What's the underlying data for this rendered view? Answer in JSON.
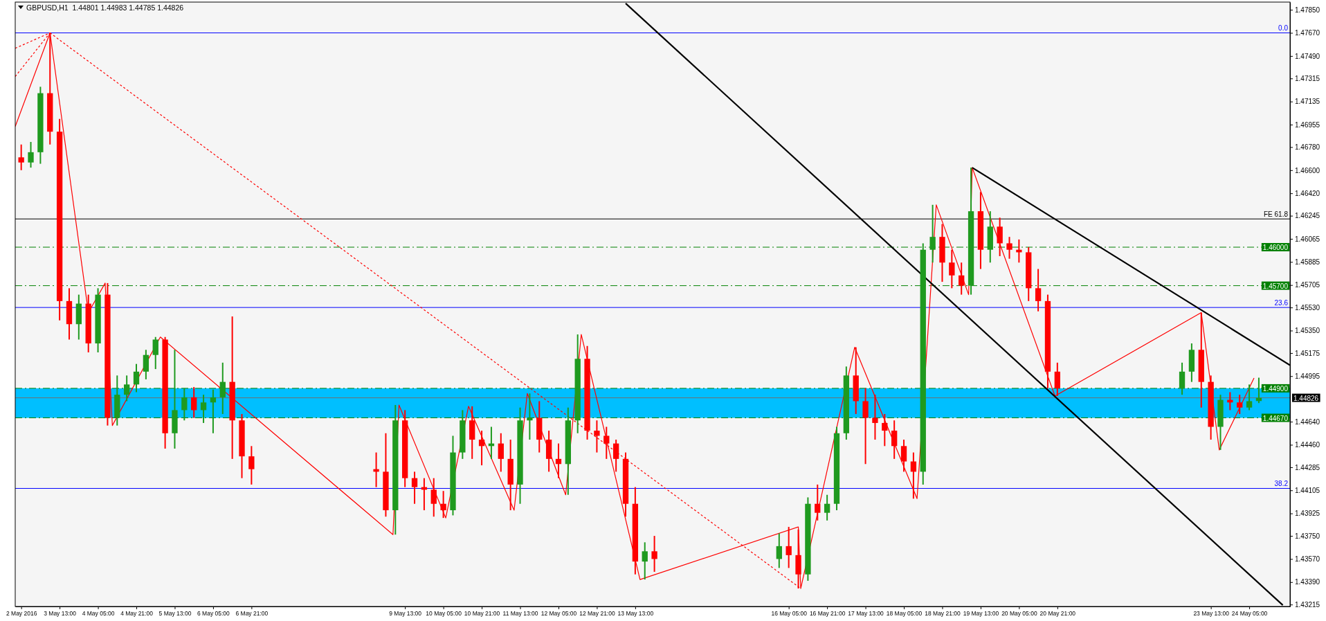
{
  "chart_data": {
    "type": "candlestick",
    "title": "GBPUSD,H1  1.44801 1.44983 1.44785 1.44826",
    "x": [
      "2016-05-02T21:00",
      "2016-05-03T01:00",
      "2016-05-03T05:00",
      "2016-05-03T09:00",
      "2016-05-03T13:00",
      "2016-05-03T17:00",
      "2016-05-03T21:00",
      "2016-05-04T01:00",
      "2016-05-04T05:00",
      "2016-05-04T09:00",
      "2016-05-04T13:00",
      "2016-05-04T17:00",
      "2016-05-04T21:00",
      "2016-05-05T01:00",
      "2016-05-05T05:00",
      "2016-05-05T09:00",
      "2016-05-05T13:00",
      "2016-05-05T17:00",
      "2016-05-05T21:00",
      "2016-05-06T01:00",
      "2016-05-06T05:00",
      "2016-05-06T09:00",
      "2016-05-06T13:00",
      "2016-05-06T17:00",
      "2016-05-06T21:00",
      "2016-05-09T01:00",
      "2016-05-09T05:00",
      "2016-05-09T09:00",
      "2016-05-09T13:00",
      "2016-05-09T17:00",
      "2016-05-09T21:00",
      "2016-05-10T01:00",
      "2016-05-10T05:00",
      "2016-05-10T09:00",
      "2016-05-10T13:00",
      "2016-05-10T17:00",
      "2016-05-10T21:00",
      "2016-05-11T01:00",
      "2016-05-11T05:00",
      "2016-05-11T09:00",
      "2016-05-11T13:00",
      "2016-05-11T17:00",
      "2016-05-11T21:00",
      "2016-05-12T01:00",
      "2016-05-12T05:00",
      "2016-05-12T09:00",
      "2016-05-12T13:00",
      "2016-05-12T17:00",
      "2016-05-12T21:00",
      "2016-05-13T01:00",
      "2016-05-13T05:00",
      "2016-05-13T09:00",
      "2016-05-13T13:00",
      "2016-05-13T17:00",
      "2016-05-13T21:00",
      "2016-05-16T01:00",
      "2016-05-16T05:00",
      "2016-05-16T09:00",
      "2016-05-16T13:00",
      "2016-05-16T17:00",
      "2016-05-16T21:00",
      "2016-05-17T01:00",
      "2016-05-17T05:00",
      "2016-05-17T09:00",
      "2016-05-17T13:00",
      "2016-05-17T17:00",
      "2016-05-17T21:00",
      "2016-05-18T01:00",
      "2016-05-18T05:00",
      "2016-05-18T09:00",
      "2016-05-18T13:00",
      "2016-05-18T17:00",
      "2016-05-18T21:00",
      "2016-05-19T01:00",
      "2016-05-19T05:00",
      "2016-05-19T09:00",
      "2016-05-19T13:00",
      "2016-05-19T17:00",
      "2016-05-19T21:00",
      "2016-05-20T01:00",
      "2016-05-20T05:00",
      "2016-05-20T09:00",
      "2016-05-20T13:00",
      "2016-05-20T17:00",
      "2016-05-20T21:00",
      "2016-05-23T01:00",
      "2016-05-23T05:00",
      "2016-05-23T09:00",
      "2016-05-23T13:00",
      "2016-05-23T17:00",
      "2016-05-23T21:00",
      "2016-05-24T01:00",
      "2016-05-24T05:00",
      "2016-05-24T09:00"
    ],
    "ohlc": [
      [
        1.467,
        1.468,
        1.466,
        1.4666
      ],
      [
        1.4666,
        1.4682,
        1.4662,
        1.4674
      ],
      [
        1.4674,
        1.4725,
        1.4665,
        1.472
      ],
      [
        1.472,
        1.4767,
        1.468,
        1.469
      ],
      [
        1.469,
        1.47,
        1.4543,
        1.4558
      ],
      [
        1.4558,
        1.4568,
        1.4528,
        1.454
      ],
      [
        1.454,
        1.4563,
        1.4528,
        1.4556
      ],
      [
        1.4556,
        1.4563,
        1.4518,
        1.4525
      ],
      [
        1.4525,
        1.4568,
        1.4518,
        1.4563
      ],
      [
        1.4563,
        1.4572,
        1.4461,
        1.4467
      ],
      [
        1.4467,
        1.45,
        1.4461,
        1.4485
      ],
      [
        1.4485,
        1.45,
        1.448,
        1.4493
      ],
      [
        1.4493,
        1.4509,
        1.4487,
        1.4503
      ],
      [
        1.4503,
        1.452,
        1.4497,
        1.4516
      ],
      [
        1.4516,
        1.453,
        1.4505,
        1.4528
      ],
      [
        1.4528,
        1.453,
        1.4443,
        1.4455
      ],
      [
        1.4455,
        1.452,
        1.4443,
        1.4473
      ],
      [
        1.4473,
        1.449,
        1.4465,
        1.4483
      ],
      [
        1.4483,
        1.4491,
        1.4467,
        1.4473
      ],
      [
        1.4473,
        1.4485,
        1.4463,
        1.4479
      ],
      [
        1.4479,
        1.4489,
        1.4455,
        1.4483
      ],
      [
        1.4483,
        1.451,
        1.447,
        1.4495
      ],
      [
        1.4495,
        1.4546,
        1.4435,
        1.4465
      ],
      [
        1.4465,
        1.447,
        1.442,
        1.4437
      ],
      [
        1.4437,
        1.4445,
        1.4415,
        1.4427
      ],
      [
        1.4427,
        1.444,
        1.4413,
        1.4425
      ],
      [
        1.4425,
        1.4455,
        1.439,
        1.4395
      ],
      [
        1.4395,
        1.4477,
        1.4376,
        1.4465
      ],
      [
        1.4465,
        1.4473,
        1.4413,
        1.442
      ],
      [
        1.442,
        1.4425,
        1.44,
        1.4413
      ],
      [
        1.4413,
        1.442,
        1.4395,
        1.4411
      ],
      [
        1.4411,
        1.442,
        1.439,
        1.44
      ],
      [
        1.44,
        1.441,
        1.4389,
        1.4395
      ],
      [
        1.4395,
        1.4453,
        1.4391,
        1.444
      ],
      [
        1.444,
        1.4473,
        1.4435,
        1.4465
      ],
      [
        1.4465,
        1.4476,
        1.4435,
        1.445
      ],
      [
        1.445,
        1.4457,
        1.443,
        1.4445
      ],
      [
        1.4445,
        1.446,
        1.4435,
        1.4447
      ],
      [
        1.4447,
        1.4455,
        1.4425,
        1.4435
      ],
      [
        1.4435,
        1.445,
        1.4395,
        1.4415
      ],
      [
        1.4415,
        1.4475,
        1.44,
        1.4465
      ],
      [
        1.4465,
        1.4486,
        1.445,
        1.4467
      ],
      [
        1.4467,
        1.448,
        1.444,
        1.445
      ],
      [
        1.445,
        1.4457,
        1.4425,
        1.4435
      ],
      [
        1.4435,
        1.4447,
        1.442,
        1.4431
      ],
      [
        1.4431,
        1.4475,
        1.4407,
        1.4465
      ],
      [
        1.4465,
        1.4532,
        1.4455,
        1.4513
      ],
      [
        1.4513,
        1.4523,
        1.445,
        1.4457
      ],
      [
        1.4457,
        1.4465,
        1.444,
        1.4453
      ],
      [
        1.4453,
        1.446,
        1.4435,
        1.4447
      ],
      [
        1.4447,
        1.445,
        1.4425,
        1.4435
      ],
      [
        1.4435,
        1.444,
        1.439,
        1.44
      ],
      [
        1.44,
        1.4413,
        1.4345,
        1.4355
      ],
      [
        1.4355,
        1.437,
        1.4341,
        1.4363
      ],
      [
        1.4363,
        1.4375,
        1.4347,
        1.4357
      ],
      [
        1.4357,
        1.4377,
        1.435,
        1.4367
      ],
      [
        1.4367,
        1.4382,
        1.435,
        1.436
      ],
      [
        1.436,
        1.438,
        1.4334,
        1.4345
      ],
      [
        1.4345,
        1.4405,
        1.434,
        1.44
      ],
      [
        1.44,
        1.4415,
        1.4387,
        1.4393
      ],
      [
        1.4393,
        1.4407,
        1.4387,
        1.44
      ],
      [
        1.44,
        1.446,
        1.4395,
        1.4455
      ],
      [
        1.4455,
        1.4507,
        1.445,
        1.45
      ],
      [
        1.45,
        1.4522,
        1.447,
        1.448
      ],
      [
        1.448,
        1.449,
        1.4431,
        1.4467
      ],
      [
        1.4467,
        1.4485,
        1.445,
        1.4463
      ],
      [
        1.4463,
        1.447,
        1.4445,
        1.4457
      ],
      [
        1.4457,
        1.4465,
        1.4435,
        1.4445
      ],
      [
        1.4445,
        1.445,
        1.4425,
        1.4433
      ],
      [
        1.4433,
        1.444,
        1.4404,
        1.4425
      ],
      [
        1.4425,
        1.4603,
        1.4415,
        1.4598
      ],
      [
        1.4598,
        1.4633,
        1.4588,
        1.4608
      ],
      [
        1.4608,
        1.4618,
        1.4573,
        1.4588
      ],
      [
        1.4588,
        1.4598,
        1.4568,
        1.4578
      ],
      [
        1.4578,
        1.4588,
        1.4563,
        1.457
      ],
      [
        1.457,
        1.4662,
        1.4563,
        1.4628
      ],
      [
        1.4628,
        1.4643,
        1.4583,
        1.4598
      ],
      [
        1.4598,
        1.4628,
        1.4588,
        1.4616
      ],
      [
        1.4616,
        1.4623,
        1.4593,
        1.4603
      ],
      [
        1.4603,
        1.4608,
        1.4591,
        1.4598
      ],
      [
        1.4598,
        1.4606,
        1.4588,
        1.4596
      ],
      [
        1.4596,
        1.46,
        1.4558,
        1.4568
      ],
      [
        1.4568,
        1.4583,
        1.455,
        1.4558
      ],
      [
        1.4558,
        1.4563,
        1.449,
        1.4503
      ],
      [
        1.4503,
        1.451,
        1.4484,
        1.449
      ],
      [
        1.449,
        1.451,
        1.4485,
        1.4503
      ],
      [
        1.4503,
        1.4525,
        1.4495,
        1.452
      ],
      [
        1.452,
        1.4549,
        1.4475,
        1.4495
      ],
      [
        1.4495,
        1.45,
        1.445,
        1.446
      ],
      [
        1.446,
        1.4485,
        1.4442,
        1.4481
      ],
      [
        1.4481,
        1.4487,
        1.4473,
        1.4479
      ],
      [
        1.4479,
        1.4485,
        1.447,
        1.4475
      ],
      [
        1.4475,
        1.4493,
        1.4473,
        1.448
      ],
      [
        1.44801,
        1.44983,
        1.44785,
        1.44826
      ]
    ],
    "series": [
      {
        "type": "line",
        "color": "#ff0000",
        "line_style": "solid",
        "x": [
          "2016-05-02T18:30",
          "2016-05-03T09:00",
          "2016-05-04T01:00",
          "2016-05-04T08:00",
          "2016-05-04T11:00",
          "2016-05-05T07:00",
          "2016-05-09T08:00",
          "2016-05-09T10:30",
          "2016-05-10T06:00",
          "2016-05-10T15:30",
          "2016-05-11T10:30",
          "2016-05-11T16:00",
          "2016-05-12T08:00",
          "2016-05-12T14:30",
          "2016-05-13T15:00",
          "2016-05-16T09:00",
          "2016-05-16T10:00",
          "2016-05-17T08:30",
          "2016-05-18T10:30",
          "2016-05-18T18:30",
          "2016-05-19T08:00",
          "2016-05-19T09:30",
          "2016-05-20T20:00",
          "2016-05-23T09:00",
          "2016-05-23T16:30",
          "2016-05-24T07:00"
        ],
        "values": [
          1.4694,
          1.4767,
          1.4549,
          1.4572,
          1.4461,
          1.453,
          1.4376,
          1.4477,
          1.4389,
          1.4476,
          1.4395,
          1.4486,
          1.4407,
          1.4532,
          1.4341,
          1.4382,
          1.4334,
          1.4522,
          1.4404,
          1.4633,
          1.4563,
          1.4662,
          1.4484,
          1.4549,
          1.4442,
          1.4498
        ]
      },
      {
        "type": "line",
        "color": "#ff0000",
        "line_style": "dotted",
        "x": [
          "2016-05-03T09:00",
          "2016-05-16T10:00"
        ],
        "values": [
          1.4767,
          1.4334
        ]
      },
      {
        "type": "line",
        "color": "#ff0000",
        "line_style": "dotted",
        "x": [
          "2016-05-02T18:30",
          "2016-05-03T09:00"
        ],
        "values": [
          1.4755,
          1.4767
        ]
      },
      {
        "type": "line",
        "color": "#ff0000",
        "line_style": "dotted",
        "x": [
          "2016-05-02T18:30",
          "2016-05-03T09:00"
        ],
        "values": [
          1.4733,
          1.4767
        ]
      },
      {
        "type": "line",
        "color": "#000000",
        "line_style": "solid",
        "x": [
          "2016-05-19T09:30",
          "2016-05-24T22:00"
        ],
        "values": [
          1.4662,
          1.4508
        ]
      },
      {
        "type": "line",
        "color": "#000000",
        "line_style": "solid",
        "x": [
          "2016-05-13T09:00",
          "2016-05-24T19:00"
        ],
        "values": [
          1.479,
          1.4321
        ]
      }
    ],
    "xlim": [
      "2016-05-02T18:30",
      "2016-05-24T22:00"
    ],
    "xticks": [
      {
        "value": "2016-05-02T21:00",
        "label": "2 May 2016"
      },
      {
        "value": "2016-05-03T13:00",
        "label": "3 May 13:00"
      },
      {
        "value": "2016-05-04T05:00",
        "label": "4 May 05:00"
      },
      {
        "value": "2016-05-04T21:00",
        "label": "4 May 21:00"
      },
      {
        "value": "2016-05-05T13:00",
        "label": "5 May 13:00"
      },
      {
        "value": "2016-05-06T05:00",
        "label": "6 May 05:00"
      },
      {
        "value": "2016-05-06T21:00",
        "label": "6 May 21:00"
      },
      {
        "value": "2016-05-09T13:00",
        "label": "9 May 13:00"
      },
      {
        "value": "2016-05-10T05:00",
        "label": "10 May 05:00"
      },
      {
        "value": "2016-05-10T21:00",
        "label": "10 May 21:00"
      },
      {
        "value": "2016-05-11T13:00",
        "label": "11 May 13:00"
      },
      {
        "value": "2016-05-12T05:00",
        "label": "12 May 05:00"
      },
      {
        "value": "2016-05-12T21:00",
        "label": "12 May 21:00"
      },
      {
        "value": "2016-05-13T13:00",
        "label": "13 May 13:00"
      },
      {
        "value": "2016-05-16T05:00",
        "label": "16 May 05:00"
      },
      {
        "value": "2016-05-16T21:00",
        "label": "16 May 21:00"
      },
      {
        "value": "2016-05-17T13:00",
        "label": "17 May 13:00"
      },
      {
        "value": "2016-05-18T05:00",
        "label": "18 May 05:00"
      },
      {
        "value": "2016-05-18T21:00",
        "label": "18 May 21:00"
      },
      {
        "value": "2016-05-19T13:00",
        "label": "19 May 13:00"
      },
      {
        "value": "2016-05-20T05:00",
        "label": "20 May 05:00"
      },
      {
        "value": "2016-05-20T21:00",
        "label": "20 May 21:00"
      },
      {
        "value": "2016-05-23T13:00",
        "label": "23 May 13:00"
      },
      {
        "value": "2016-05-24T05:00",
        "label": "24 May 05:00"
      }
    ],
    "ylim": [
      1.432,
      1.4791
    ],
    "yticks": [
      {
        "value": 1.4785,
        "label": "1.47850"
      },
      {
        "value": 1.4767,
        "label": "1.47670"
      },
      {
        "value": 1.4749,
        "label": "1.47490"
      },
      {
        "value": 1.47315,
        "label": "1.47315"
      },
      {
        "value": 1.47135,
        "label": "1.47135"
      },
      {
        "value": 1.46955,
        "label": "1.46955"
      },
      {
        "value": 1.4678,
        "label": "1.46780"
      },
      {
        "value": 1.466,
        "label": "1.46600"
      },
      {
        "value": 1.4642,
        "label": "1.46420"
      },
      {
        "value": 1.46245,
        "label": "1.46245"
      },
      {
        "value": 1.46065,
        "label": "1.46065"
      },
      {
        "value": 1.45885,
        "label": "1.45885"
      },
      {
        "value": 1.45705,
        "label": "1.45705"
      },
      {
        "value": 1.4553,
        "label": "1.45530"
      },
      {
        "value": 1.4535,
        "label": "1.45350"
      },
      {
        "value": 1.45175,
        "label": "1.45175"
      },
      {
        "value": 1.44995,
        "label": "1.44995"
      },
      {
        "value": 1.4464,
        "label": "1.44640"
      },
      {
        "value": 1.4446,
        "label": "1.44460"
      },
      {
        "value": 1.44285,
        "label": "1.44285"
      },
      {
        "value": 1.44105,
        "label": "1.44105"
      },
      {
        "value": 1.43925,
        "label": "1.43925"
      },
      {
        "value": 1.4375,
        "label": "1.43750"
      },
      {
        "value": 1.4357,
        "label": "1.43570"
      },
      {
        "value": 1.4339,
        "label": "1.43390"
      },
      {
        "value": 1.43215,
        "label": "1.43215"
      }
    ],
    "bands": [
      {
        "axis": "y",
        "from": 1.4467,
        "to": 1.449,
        "color": "#00bfff"
      }
    ],
    "ref_lines": [
      {
        "axis": "y",
        "value": 1.4767,
        "color": "#0000ff",
        "line_style": "solid"
      },
      {
        "axis": "y",
        "value": 1.4553,
        "color": "#0000ff",
        "line_style": "solid"
      },
      {
        "axis": "y",
        "value": 1.4412,
        "color": "#0000ff",
        "line_style": "solid"
      },
      {
        "axis": "y",
        "value": 1.4622,
        "color": "#000000",
        "line_style": "solid"
      },
      {
        "axis": "y",
        "value": 1.46,
        "label": "1.46000",
        "color": "#008000",
        "line_style": "dashed"
      },
      {
        "axis": "y",
        "value": 1.457,
        "label": "1.45700",
        "color": "#008000",
        "line_style": "dashed"
      },
      {
        "axis": "y",
        "value": 1.449,
        "label": "1.44900",
        "color": "#008000",
        "line_style": "dashed"
      },
      {
        "axis": "y",
        "value": 1.4467,
        "label": "1.44670",
        "color": "#008000",
        "line_style": "dashed"
      },
      {
        "axis": "y",
        "value": 1.44826,
        "label": "1.44826",
        "color": "#707070",
        "line_style": "solid"
      }
    ],
    "annotations": [
      "0.0",
      "23.6",
      "38.2",
      "FE 61.8"
    ],
    "grid": false
  }
}
